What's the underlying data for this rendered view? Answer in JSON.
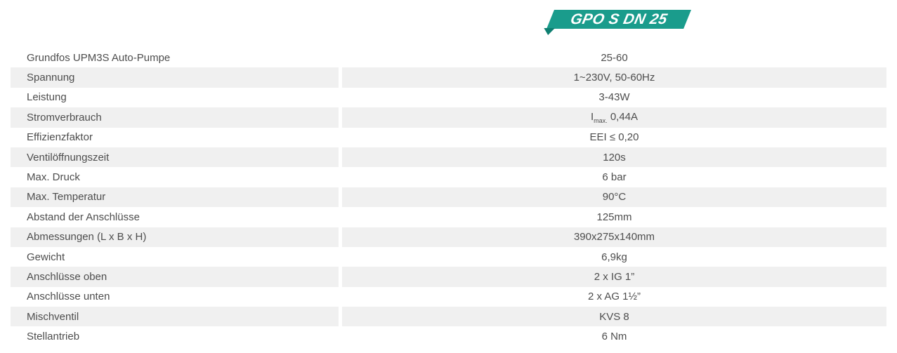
{
  "badge": {
    "label": "GPO S DN 25",
    "color": "#1a9c8c",
    "tail_color": "#0e7f71",
    "text_color": "#ffffff"
  },
  "table": {
    "row_alt_color": "#f0f0f0",
    "text_color": "#4d4d4d",
    "rows": [
      {
        "label": "Grundfos UPM3S Auto-Pumpe",
        "value": "25-60"
      },
      {
        "label": "Spannung",
        "value": "1~230V, 50-60Hz"
      },
      {
        "label": "Leistung",
        "value": "3-43W"
      },
      {
        "label": "Stromverbrauch",
        "value": "Imax. 0,44A",
        "value_parts": {
          "base": "I",
          "sub": "max.",
          "rest": " 0,44A"
        }
      },
      {
        "label": "Effizienzfaktor",
        "value": "EEI ≤ 0,20"
      },
      {
        "label": "Ventilöffnungszeit",
        "value": "120s"
      },
      {
        "label": "Max. Druck",
        "value": "6 bar"
      },
      {
        "label": "Max. Temperatur",
        "value": "90°C"
      },
      {
        "label": "Abstand der Anschlüsse",
        "value": "125mm"
      },
      {
        "label": "Abmessungen (L x B x H)",
        "value": "390x275x140mm"
      },
      {
        "label": "Gewicht",
        "value": "6,9kg"
      },
      {
        "label": "Anschlüsse oben",
        "value": "2 x IG 1”"
      },
      {
        "label": "Anschlüsse unten",
        "value": "2 x AG 1½”"
      },
      {
        "label": "Mischventil",
        "value": "KVS 8"
      },
      {
        "label": "Stellantrieb",
        "value": "6 Nm"
      }
    ]
  }
}
